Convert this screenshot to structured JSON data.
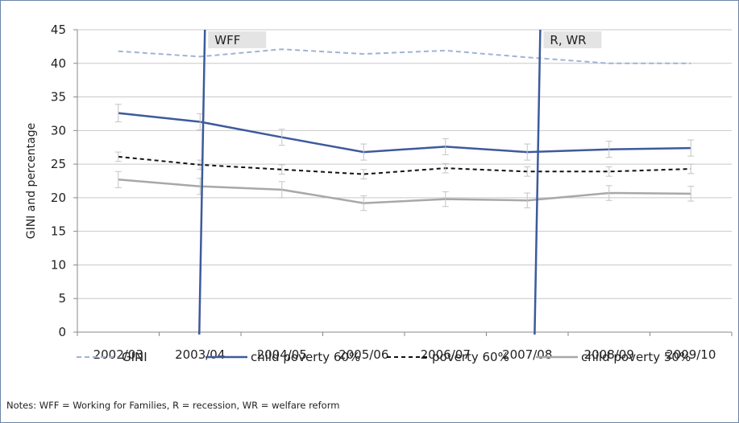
{
  "chart_data": {
    "type": "line",
    "title": "",
    "xlabel": "",
    "ylabel": "GINI and percentage",
    "categories": [
      "2002/03",
      "2003/04",
      "2004/05",
      "2005/06",
      "2006/07",
      "2007/08",
      "2008/09",
      "2009/10"
    ],
    "ylim": [
      0,
      45
    ],
    "yticks": [
      0,
      5,
      10,
      15,
      20,
      25,
      30,
      35,
      40,
      45
    ],
    "grid": true,
    "legend_position": "bottom",
    "series": [
      {
        "name": "GINI",
        "style": "dashed",
        "color": "#9fb3d6",
        "values": [
          41.8,
          41.0,
          42.1,
          41.4,
          41.9,
          40.9,
          40.0,
          40.0
        ],
        "error": null
      },
      {
        "name": "child poverty 60%",
        "style": "solid",
        "color": "#3d5a9c",
        "values": [
          32.6,
          31.3,
          29.0,
          26.8,
          27.6,
          26.8,
          27.2,
          27.4
        ],
        "error": [
          1.3,
          1.2,
          1.2,
          1.2,
          1.2,
          1.2,
          1.2,
          1.2
        ]
      },
      {
        "name": "poverty 60%",
        "style": "dashed",
        "color": "#111111",
        "values": [
          26.1,
          24.9,
          24.2,
          23.5,
          24.4,
          23.9,
          23.9,
          24.3
        ],
        "error": [
          0.7,
          0.7,
          0.7,
          0.7,
          0.7,
          0.7,
          0.7,
          0.7
        ]
      },
      {
        "name": "child poverty 50%",
        "style": "solid",
        "color": "#a8a8a8",
        "values": [
          22.7,
          21.7,
          21.2,
          19.2,
          19.8,
          19.6,
          20.7,
          20.6
        ],
        "error": [
          1.2,
          1.2,
          1.2,
          1.1,
          1.1,
          1.1,
          1.1,
          1.1
        ]
      }
    ],
    "events": [
      {
        "label": "WFF",
        "position": 1.5
      },
      {
        "label": "R, WR",
        "position": 5.6
      }
    ],
    "notes": "Notes: WFF = Working for Families, R = recession, WR = welfare reform"
  }
}
